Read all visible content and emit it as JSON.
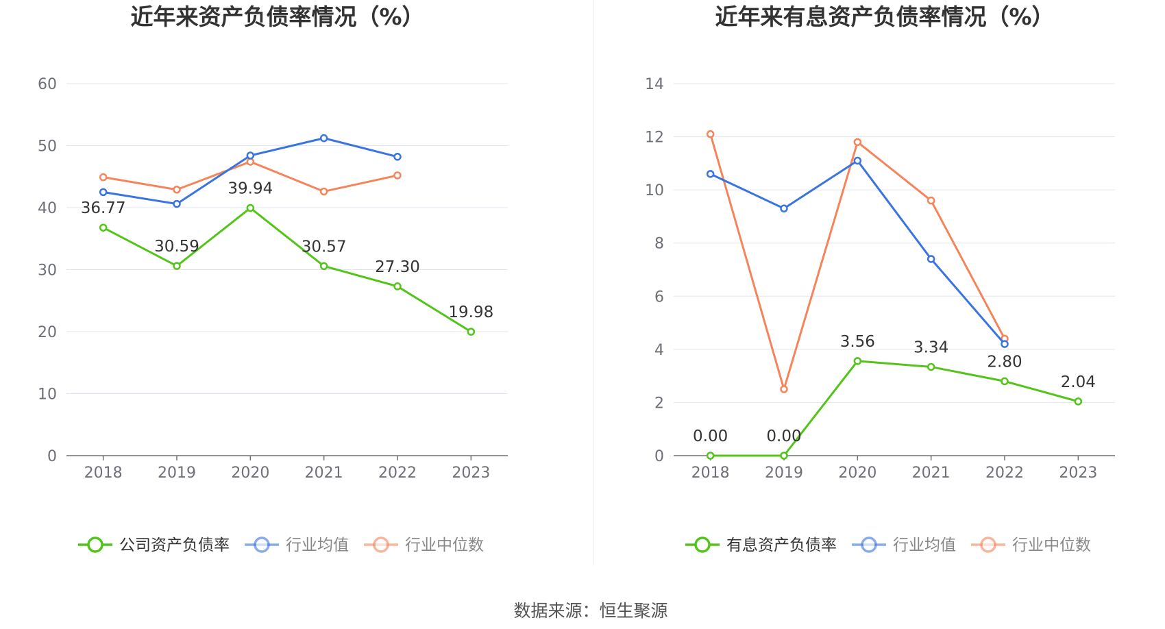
{
  "footer": {
    "source": "数据来源：恒生聚源"
  },
  "colors": {
    "company": "#52c41a",
    "avg": "#3a74e0",
    "median": "#f5845a",
    "grid": "#e0e6f1",
    "axis": "#6e7079"
  },
  "chart_data": [
    {
      "type": "line",
      "title": "近年来资产负债率情况（%）",
      "categories": [
        "2018",
        "2019",
        "2020",
        "2021",
        "2022",
        "2023"
      ],
      "ylim": [
        0,
        60
      ],
      "yticks": [
        0,
        10,
        20,
        30,
        40,
        50,
        60
      ],
      "grid": true,
      "legend_position": "bottom",
      "series": [
        {
          "name": "公司资产负债率",
          "values": [
            36.77,
            30.59,
            39.94,
            30.57,
            27.3,
            19.98
          ],
          "labels": [
            "36.77",
            "30.59",
            "39.94",
            "30.57",
            "27.30",
            "19.98"
          ],
          "color": "#52c41a"
        },
        {
          "name": "行业均值",
          "values": [
            42.5,
            40.6,
            48.4,
            51.2,
            48.2,
            null
          ],
          "color": "#3a74e0"
        },
        {
          "name": "行业中位数",
          "values": [
            44.9,
            42.9,
            47.4,
            42.6,
            45.2,
            null
          ],
          "color": "#f5845a"
        }
      ]
    },
    {
      "type": "line",
      "title": "近年来有息资产负债率情况（%）",
      "categories": [
        "2018",
        "2019",
        "2020",
        "2021",
        "2022",
        "2023"
      ],
      "ylim": [
        0,
        14
      ],
      "yticks": [
        0,
        2,
        4,
        6,
        8,
        10,
        12,
        14
      ],
      "grid": true,
      "legend_position": "bottom",
      "series": [
        {
          "name": "有息资产负债率",
          "values": [
            0.0,
            0.0,
            3.56,
            3.34,
            2.8,
            2.04
          ],
          "labels": [
            "0.00",
            "0.00",
            "3.56",
            "3.34",
            "2.80",
            "2.04"
          ],
          "color": "#52c41a"
        },
        {
          "name": "行业均值",
          "values": [
            10.6,
            9.3,
            11.1,
            7.4,
            4.2,
            null
          ],
          "color": "#3a74e0"
        },
        {
          "name": "行业中位数",
          "values": [
            12.1,
            2.5,
            11.8,
            9.6,
            4.4,
            null
          ],
          "color": "#f5845a"
        }
      ]
    }
  ]
}
